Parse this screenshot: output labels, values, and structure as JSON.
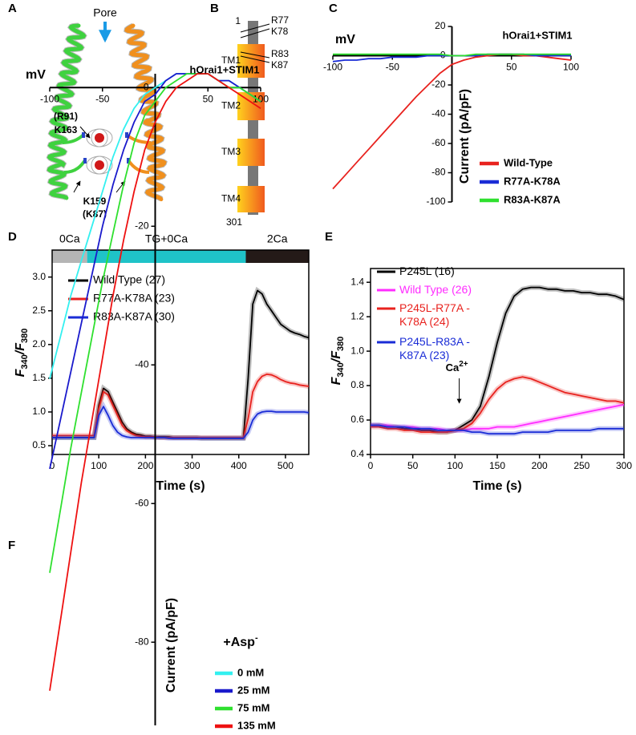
{
  "panel_a": {
    "label": "A",
    "pore": "Pore",
    "residues": [
      "(R91)",
      "K163",
      "K159",
      "(K87)"
    ]
  },
  "panel_b": {
    "label": "B",
    "first": "1",
    "last": "301",
    "segments": [
      "TM1",
      "TM2",
      "TM3",
      "TM4"
    ],
    "residues": [
      "R77",
      "K78",
      "R83",
      "K87"
    ]
  },
  "chart_data": [
    {
      "type": "line",
      "panel": "C",
      "annotation": "hOrai1+STIM1",
      "xlabel": "mV",
      "ylabel": "Current (pA/pF)",
      "x": [
        -100,
        -90,
        -80,
        -70,
        -60,
        -50,
        -40,
        -30,
        -20,
        -10,
        0,
        10,
        20,
        30,
        40,
        50,
        60,
        70,
        80,
        90,
        100
      ],
      "xlim": [
        -100,
        100
      ],
      "xticks": [
        -100,
        -50,
        50,
        100
      ],
      "ylim": [
        -100,
        20
      ],
      "yticks": [
        -100,
        -80,
        -60,
        -40,
        -20,
        0,
        20
      ],
      "series": [
        {
          "name": "Wild-Type",
          "color": "#e8221e",
          "values": [
            -91,
            -82,
            -73,
            -64,
            -55,
            -46,
            -37,
            -28,
            -20,
            -12,
            -6,
            -3,
            -1,
            0,
            1,
            1,
            0,
            0,
            -1,
            -2,
            -3
          ]
        },
        {
          "name": "R77A-K78A",
          "color": "#1a2cd6",
          "values": [
            -4,
            -3,
            -3,
            -2,
            -2,
            -1,
            -1,
            -1,
            0,
            0,
            0,
            0,
            0,
            1,
            1,
            1,
            1,
            0,
            0,
            0,
            0
          ]
        },
        {
          "name": "R83A-K87A",
          "color": "#2fe02f",
          "values": [
            1,
            1,
            1,
            1,
            1,
            1,
            1,
            1,
            1,
            1,
            0,
            0,
            1,
            1,
            1,
            1,
            1,
            1,
            1,
            1,
            1
          ]
        }
      ]
    },
    {
      "type": "line",
      "panel": "D",
      "xlabel": "Time (s)",
      "ylabel": [
        "F",
        "340",
        "/F",
        "380"
      ],
      "condition_bars": [
        {
          "label": "0Ca",
          "start": 0,
          "end": 75,
          "color": "#b5b5b5"
        },
        {
          "label": "TG+0Ca",
          "start": 75,
          "end": 415,
          "color": "#1fc3c8"
        },
        {
          "label": "2Ca",
          "start": 415,
          "end": 550,
          "color": "#241a18"
        }
      ],
      "x": [
        0,
        10,
        20,
        30,
        40,
        50,
        60,
        70,
        80,
        90,
        100,
        110,
        120,
        130,
        140,
        150,
        160,
        170,
        180,
        190,
        200,
        210,
        220,
        230,
        240,
        250,
        260,
        270,
        280,
        290,
        300,
        310,
        320,
        330,
        340,
        350,
        360,
        370,
        380,
        390,
        400,
        410,
        420,
        430,
        440,
        450,
        460,
        470,
        480,
        490,
        500,
        510,
        520,
        530,
        540,
        550
      ],
      "xlim": [
        0,
        550
      ],
      "xticks": [
        0,
        100,
        200,
        300,
        400,
        500
      ],
      "ylim": [
        0.37,
        3.4
      ],
      "yticks": [
        0.5,
        {
          "value": 1,
          "label": "1.0"
        },
        1.5,
        {
          "value": 2,
          "label": "2.0"
        },
        2.5,
        {
          "value": 3,
          "label": "3.0"
        }
      ],
      "series": [
        {
          "name": "Wild Type (27)",
          "color": "#000000",
          "values": [
            0.62,
            0.62,
            0.62,
            0.62,
            0.62,
            0.62,
            0.62,
            0.62,
            0.62,
            0.62,
            1.1,
            1.35,
            1.3,
            1.15,
            1.0,
            0.85,
            0.75,
            0.7,
            0.67,
            0.66,
            0.64,
            0.64,
            0.63,
            0.63,
            0.63,
            0.63,
            0.62,
            0.62,
            0.62,
            0.62,
            0.62,
            0.62,
            0.61,
            0.61,
            0.61,
            0.61,
            0.61,
            0.61,
            0.61,
            0.61,
            0.61,
            0.61,
            1.5,
            2.6,
            2.8,
            2.75,
            2.6,
            2.5,
            2.4,
            2.3,
            2.25,
            2.2,
            2.17,
            2.15,
            2.12,
            2.1
          ]
        },
        {
          "name": "R77A-K78A (23)",
          "color": "#e8221e",
          "values": [
            0.65,
            0.65,
            0.65,
            0.65,
            0.65,
            0.65,
            0.65,
            0.65,
            0.65,
            0.65,
            1.05,
            1.3,
            1.25,
            1.1,
            0.95,
            0.8,
            0.72,
            0.68,
            0.65,
            0.64,
            0.63,
            0.63,
            0.63,
            0.62,
            0.62,
            0.62,
            0.62,
            0.62,
            0.62,
            0.62,
            0.62,
            0.62,
            0.62,
            0.62,
            0.62,
            0.62,
            0.62,
            0.62,
            0.62,
            0.62,
            0.62,
            0.62,
            0.9,
            1.3,
            1.45,
            1.53,
            1.56,
            1.55,
            1.52,
            1.48,
            1.45,
            1.43,
            1.42,
            1.4,
            1.39,
            1.38
          ]
        },
        {
          "name": "R83A-K87A (30)",
          "color": "#1a2cd6",
          "values": [
            0.62,
            0.62,
            0.62,
            0.62,
            0.62,
            0.62,
            0.62,
            0.62,
            0.62,
            0.62,
            0.95,
            1.08,
            0.95,
            0.8,
            0.7,
            0.65,
            0.63,
            0.62,
            0.62,
            0.62,
            0.62,
            0.62,
            0.62,
            0.62,
            0.62,
            0.61,
            0.61,
            0.61,
            0.61,
            0.61,
            0.61,
            0.61,
            0.61,
            0.61,
            0.61,
            0.61,
            0.61,
            0.61,
            0.61,
            0.61,
            0.61,
            0.61,
            0.7,
            0.88,
            0.97,
            1.0,
            1.01,
            1.01,
            1.0,
            1.0,
            1.0,
            1.0,
            1.0,
            1.0,
            1.0,
            0.99
          ]
        }
      ]
    },
    {
      "type": "line",
      "panel": "E",
      "xlabel": "Time (s)",
      "ylabel": [
        "F",
        "340",
        "/F",
        "380"
      ],
      "annotation": [
        "Ca",
        "2+"
      ],
      "x": [
        0,
        10,
        20,
        30,
        40,
        50,
        60,
        70,
        80,
        90,
        100,
        110,
        120,
        130,
        140,
        150,
        160,
        170,
        180,
        190,
        200,
        210,
        220,
        230,
        240,
        250,
        260,
        270,
        280,
        290,
        300
      ],
      "xlim": [
        0,
        300
      ],
      "xticks": [
        0,
        50,
        100,
        150,
        200,
        250,
        300
      ],
      "ylim": [
        0.4,
        1.48
      ],
      "yticks": [
        0.4,
        0.6,
        0.8,
        {
          "value": 1,
          "label": "1.0"
        },
        1.2,
        1.4
      ],
      "series": [
        {
          "name": "P245L (16)",
          "color": "#000000",
          "values": [
            0.57,
            0.57,
            0.56,
            0.56,
            0.55,
            0.55,
            0.54,
            0.54,
            0.53,
            0.53,
            0.54,
            0.57,
            0.6,
            0.68,
            0.85,
            1.05,
            1.22,
            1.32,
            1.36,
            1.37,
            1.37,
            1.36,
            1.36,
            1.35,
            1.35,
            1.34,
            1.34,
            1.33,
            1.33,
            1.32,
            1.3
          ]
        },
        {
          "name": "Wild Type (26)",
          "color": "#ff2cff",
          "values": [
            0.57,
            0.57,
            0.57,
            0.56,
            0.56,
            0.56,
            0.55,
            0.55,
            0.55,
            0.54,
            0.54,
            0.54,
            0.55,
            0.55,
            0.55,
            0.56,
            0.56,
            0.56,
            0.57,
            0.58,
            0.59,
            0.6,
            0.61,
            0.62,
            0.63,
            0.64,
            0.65,
            0.66,
            0.67,
            0.68,
            0.69
          ]
        },
        {
          "name": "P245L-R77A -K78A (24)",
          "color": "#e8221e",
          "values": [
            0.56,
            0.56,
            0.55,
            0.55,
            0.54,
            0.54,
            0.53,
            0.53,
            0.53,
            0.53,
            0.54,
            0.55,
            0.58,
            0.64,
            0.72,
            0.78,
            0.82,
            0.84,
            0.85,
            0.84,
            0.82,
            0.8,
            0.78,
            0.76,
            0.75,
            0.74,
            0.73,
            0.72,
            0.71,
            0.71,
            0.7
          ]
        },
        {
          "name": "P245L-R83A -K87A (23)",
          "color": "#1a2cd6",
          "values": [
            0.57,
            0.57,
            0.56,
            0.56,
            0.56,
            0.55,
            0.55,
            0.55,
            0.54,
            0.54,
            0.54,
            0.54,
            0.53,
            0.53,
            0.52,
            0.52,
            0.52,
            0.52,
            0.53,
            0.53,
            0.53,
            0.53,
            0.54,
            0.54,
            0.54,
            0.54,
            0.54,
            0.55,
            0.55,
            0.55,
            0.55
          ]
        }
      ]
    },
    {
      "type": "line",
      "panel": "F",
      "annotation": "hOrai1+STIM1",
      "xlabel": "mV",
      "ylabel": "Current (pA/pF)",
      "legend_title": [
        "+Asp",
        "-"
      ],
      "x": [
        -100,
        -90,
        -80,
        -70,
        -60,
        -50,
        -40,
        -30,
        -20,
        -10,
        0,
        10,
        20,
        30,
        40,
        50,
        60,
        70,
        80,
        90,
        100
      ],
      "xlim": [
        -100,
        100
      ],
      "xticks": [
        -100,
        -50,
        50,
        100
      ],
      "ylim": [
        -92,
        2
      ],
      "yticks": [
        -80,
        -60,
        -40,
        -20,
        0
      ],
      "series": [
        {
          "name": "0 mM",
          "color": "#33f0f0",
          "values": [
            -42,
            -36,
            -30,
            -25,
            -20,
            -15,
            -10,
            -6,
            -3,
            -1,
            0,
            1,
            2,
            2,
            2,
            2,
            1,
            1,
            0,
            -1,
            -2
          ]
        },
        {
          "name": "25 mM",
          "color": "#1a1acc",
          "values": [
            -55,
            -48,
            -41,
            -34,
            -27,
            -20,
            -14,
            -9,
            -5,
            -2,
            -1,
            1,
            2,
            2,
            2,
            2,
            1,
            1,
            0,
            -1,
            -2
          ]
        },
        {
          "name": "75 mM",
          "color": "#2fe02f",
          "values": [
            -70,
            -61,
            -52,
            -44,
            -36,
            -28,
            -21,
            -14,
            -8,
            -4,
            -2,
            0,
            1,
            2,
            2,
            2,
            1,
            0,
            0,
            -1,
            -2
          ]
        },
        {
          "name": "135 mM",
          "color": "#ee1111",
          "values": [
            -87,
            -77,
            -67,
            -57,
            -48,
            -39,
            -30,
            -22,
            -15,
            -9,
            -5,
            -2,
            0,
            1,
            2,
            2,
            1,
            0,
            -1,
            -2,
            -3
          ]
        }
      ]
    }
  ]
}
